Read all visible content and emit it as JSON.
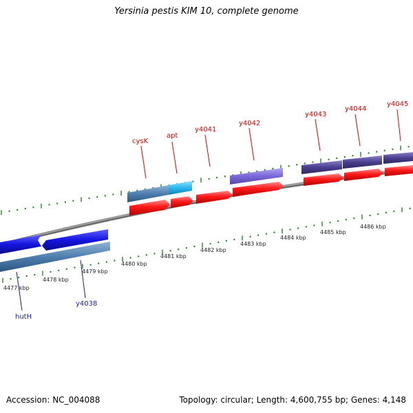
{
  "title": "Yersinia pestis KIM 10, complete genome",
  "footer": {
    "accession": "Accession: NC_004088",
    "summary": "Topology: circular; Length: 4,600,755 bp; Genes: 4,148"
  },
  "colors": {
    "backbone": "#8a8a8a",
    "tick": "#1f8a1f",
    "forward_label": "#dd0000",
    "reverse_label": "#1a1aaa",
    "cds": "#ff1a1a",
    "gene_steel": "#4f7fae",
    "gene_cyan": "#2ab8ee",
    "gene_blue": "#1515e0",
    "gene_violet": "#7b68d8",
    "gene_indigo": "#4a3f8f"
  },
  "scale_labels": [
    "4477 kbp",
    "4478 kbp",
    "4479 kbp",
    "4480 kbp",
    "4481 kbp",
    "4482 kbp",
    "4483 kbp",
    "4484 kbp",
    "4485 kbp",
    "4486 kbp"
  ],
  "forward_gene_labels": [
    "cysK",
    "apt",
    "y4041",
    "y4042",
    "y4043",
    "y4044",
    "y4045"
  ],
  "reverse_gene_labels": [
    "hutH",
    "y4038"
  ]
}
